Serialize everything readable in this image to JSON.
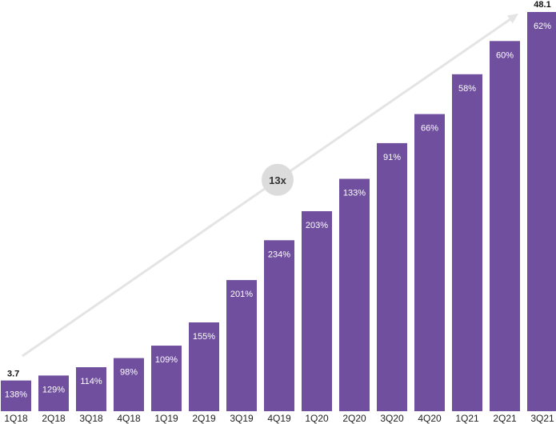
{
  "chart_data": {
    "type": "bar",
    "title": "",
    "xlabel": "",
    "ylabel": "",
    "categories": [
      "1Q18",
      "2Q18",
      "3Q18",
      "4Q18",
      "1Q19",
      "2Q19",
      "3Q19",
      "4Q19",
      "1Q20",
      "2Q20",
      "3Q20",
      "4Q20",
      "1Q21",
      "2Q21",
      "3Q21"
    ],
    "values": [
      3.7,
      4.3,
      5.3,
      6.4,
      7.9,
      10.7,
      15.8,
      20.6,
      24.1,
      28.0,
      32.3,
      35.8,
      40.6,
      44.6,
      48.1
    ],
    "growth_labels": [
      "138%",
      "129%",
      "114%",
      "98%",
      "109%",
      "155%",
      "201%",
      "234%",
      "203%",
      "133%",
      "91%",
      "66%",
      "58%",
      "60%",
      "62%"
    ],
    "start_label": "3.7",
    "end_label": "48.1",
    "growth_multiple": "13x",
    "ylim": [
      0,
      48.1
    ],
    "grid": false,
    "colors": {
      "bar": "#6f4f9e",
      "arrow": "#e4e4e4",
      "badge": "#dcdcdc"
    }
  }
}
